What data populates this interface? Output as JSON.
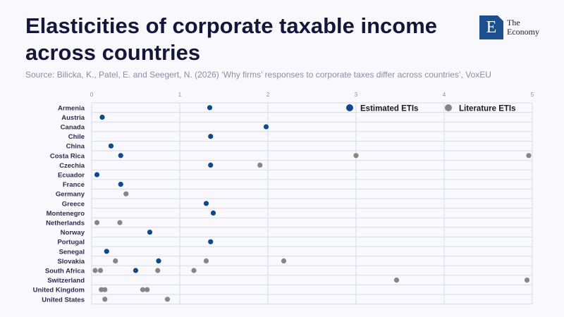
{
  "header": {
    "title": "Elasticities of corporate taxable income across countries",
    "source": "Source: Bilicka, K., Patel, E. and Seegert, N. (2026) ‘Why firms’ responses to corporate taxes differ across countries’, VoxEU"
  },
  "logo": {
    "mark": "E",
    "line1": "The",
    "line2": "Economy"
  },
  "colors": {
    "estimated": "#0c4a8c",
    "literature": "#868686",
    "grid": "#d9dbe6"
  },
  "chart_data": {
    "type": "scatter",
    "title": "Elasticities of corporate taxable income across countries",
    "xlim": [
      0,
      5
    ],
    "xticks": [
      "0",
      "1",
      "2",
      "3",
      "4",
      "5"
    ],
    "legend_position": "top-right",
    "categories": [
      "Armenia",
      "Austria",
      "Canada",
      "Chile",
      "China",
      "Costa Rica",
      "Czechia",
      "Ecuador",
      "France",
      "Germany",
      "Greece",
      "Montenegro",
      "Netherlands",
      "Norway",
      "Portugal",
      "Senegal",
      "Slovakia",
      "South Africa",
      "Switzerland",
      "United Kingdom",
      "United States"
    ],
    "series": [
      {
        "name": "Estimated ETIs",
        "points": [
          [
            "Armenia",
            1.34
          ],
          [
            "Austria",
            0.12
          ],
          [
            "Canada",
            1.98
          ],
          [
            "Chile",
            1.35
          ],
          [
            "China",
            0.22
          ],
          [
            "Costa Rica",
            0.33
          ],
          [
            "Czechia",
            1.35
          ],
          [
            "Ecuador",
            0.06
          ],
          [
            "France",
            0.33
          ],
          [
            "Greece",
            1.3
          ],
          [
            "Montenegro",
            1.38
          ],
          [
            "Norway",
            0.66
          ],
          [
            "Portugal",
            1.35
          ],
          [
            "Senegal",
            0.17
          ],
          [
            "Slovakia",
            0.76
          ],
          [
            "South Africa",
            0.5
          ]
        ]
      },
      {
        "name": "Literature ETIs",
        "points": [
          [
            "Costa Rica",
            3.0
          ],
          [
            "Costa Rica",
            4.96
          ],
          [
            "Czechia",
            1.91
          ],
          [
            "Germany",
            0.39
          ],
          [
            "Netherlands",
            0.06
          ],
          [
            "Netherlands",
            0.32
          ],
          [
            "Slovakia",
            0.27
          ],
          [
            "Slovakia",
            1.3
          ],
          [
            "Slovakia",
            2.18
          ],
          [
            "South Africa",
            0.04
          ],
          [
            "South Africa",
            0.1
          ],
          [
            "South Africa",
            0.75
          ],
          [
            "South Africa",
            1.16
          ],
          [
            "Switzerland",
            3.46
          ],
          [
            "Switzerland",
            4.94
          ],
          [
            "United Kingdom",
            0.11
          ],
          [
            "United Kingdom",
            0.15
          ],
          [
            "United Kingdom",
            0.58
          ],
          [
            "United Kingdom",
            0.63
          ],
          [
            "United States",
            0.15
          ],
          [
            "United States",
            0.86
          ]
        ]
      }
    ]
  }
}
